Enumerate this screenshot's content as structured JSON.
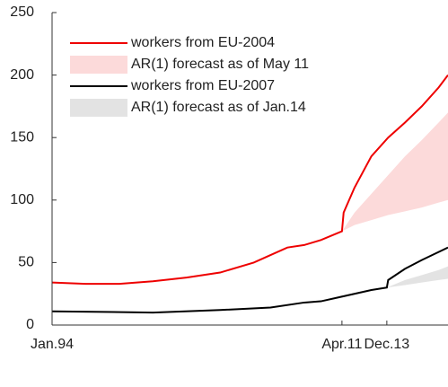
{
  "chart_data": {
    "type": "line",
    "xlim": [
      1994,
      2017.56
    ],
    "ylim": [
      0,
      250
    ],
    "xticks": [
      {
        "value": 1994,
        "label": "Jan.94"
      },
      {
        "value": 2011.25,
        "label": "Apr.11"
      },
      {
        "value": 2013.92,
        "label": "Dec.13"
      }
    ],
    "yticks": [
      0,
      50,
      100,
      150,
      200,
      250
    ],
    "grid": false,
    "legend": "upper left",
    "series": [
      {
        "name": "workers from EU-2004",
        "kind": "line",
        "color": "#ee0000",
        "x": [
          1994,
          1996,
          1998,
          2000,
          2002,
          2004,
          2006,
          2007,
          2008,
          2009,
          2010,
          2011.25,
          2011.35,
          2012,
          2013,
          2014,
          2015,
          2016,
          2017,
          2017.56
        ],
        "values": [
          34,
          33,
          33,
          35,
          38,
          42,
          50,
          56,
          62,
          64,
          68,
          75,
          90,
          110,
          135,
          150,
          162,
          175,
          190,
          200
        ]
      },
      {
        "name": "AR(1) forecast as of May 11",
        "kind": "band",
        "color": "#fcdada",
        "x": [
          2011.25,
          2012,
          2013,
          2014,
          2015,
          2016,
          2017,
          2017.56
        ],
        "lower": [
          75,
          80,
          84,
          88,
          91,
          94,
          98,
          100
        ],
        "upper": [
          75,
          90,
          105,
          120,
          135,
          148,
          162,
          170
        ]
      },
      {
        "name": "workers from EU-2007",
        "kind": "line",
        "color": "#000000",
        "x": [
          1994,
          2000,
          2004,
          2007,
          2009,
          2010,
          2011,
          2013,
          2013.92,
          2014.0,
          2015,
          2016,
          2017.56
        ],
        "values": [
          11,
          10,
          12,
          14,
          18,
          19,
          22,
          28,
          30,
          36,
          45,
          52,
          62
        ]
      },
      {
        "name": "AR(1) forecast as of Jan.14",
        "kind": "band",
        "color": "#e3e3e3",
        "x": [
          2013.92,
          2015,
          2016,
          2017,
          2017.56
        ],
        "lower": [
          30,
          32,
          34,
          36,
          37
        ],
        "upper": [
          30,
          36,
          40,
          44,
          47
        ]
      }
    ]
  }
}
